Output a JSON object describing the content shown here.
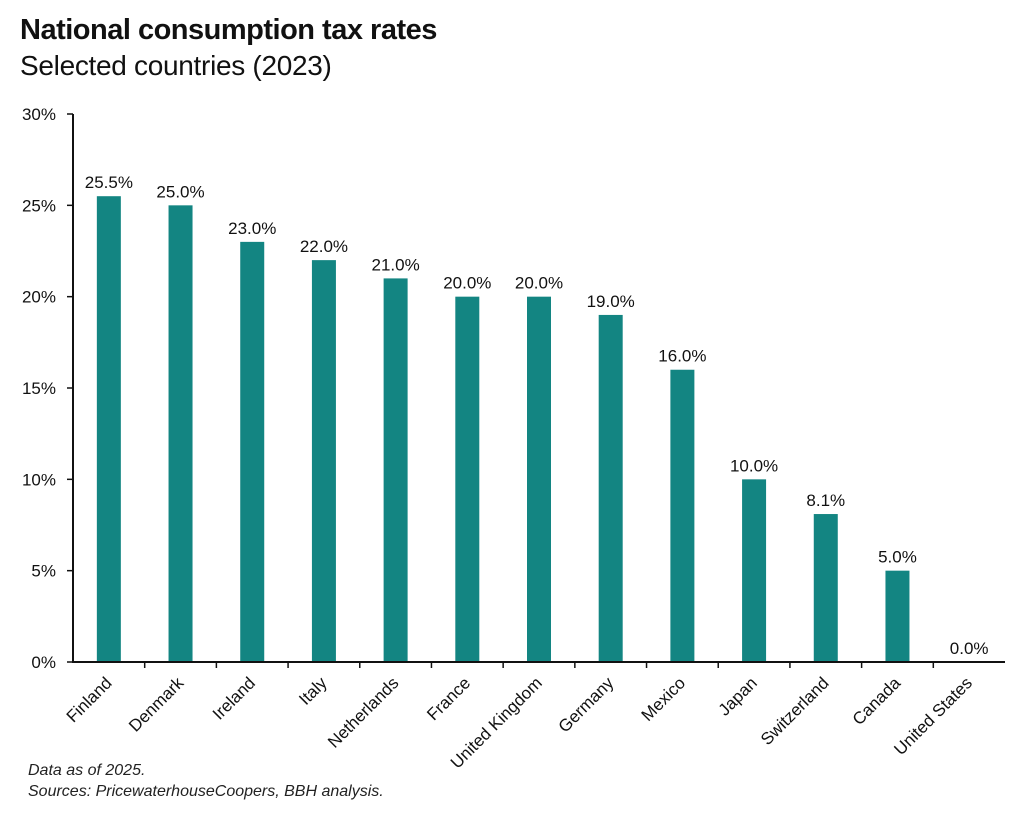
{
  "chart_data": {
    "type": "bar",
    "title": "National consumption tax rates",
    "subtitle": "Selected countries (2023)",
    "categories": [
      "Finland",
      "Denmark",
      "Ireland",
      "Italy",
      "Netherlands",
      "France",
      "United Kingdom",
      "Germany",
      "Mexico",
      "Japan",
      "Switzerland",
      "Canada",
      "United States"
    ],
    "values": [
      25.5,
      25.0,
      23.0,
      22.0,
      21.0,
      20.0,
      20.0,
      19.0,
      16.0,
      10.0,
      8.1,
      5.0,
      0.0
    ],
    "data_labels": [
      "25.5%",
      "25.0%",
      "23.0%",
      "22.0%",
      "21.0%",
      "20.0%",
      "20.0%",
      "19.0%",
      "16.0%",
      "10.0%",
      "8.1%",
      "5.0%",
      "0.0%"
    ],
    "xlabel": "",
    "ylabel": "",
    "ylim": [
      0,
      30
    ],
    "yticks": [
      0,
      5,
      10,
      15,
      20,
      25,
      30
    ],
    "ytick_labels": [
      "0%",
      "5%",
      "10%",
      "15%",
      "20%",
      "25%",
      "30%"
    ],
    "grid": false,
    "bar_color": "#138582"
  },
  "notes": {
    "line1": "Data as of 2025.",
    "line2": "Sources: PricewaterhouseCoopers, BBH analysis."
  }
}
